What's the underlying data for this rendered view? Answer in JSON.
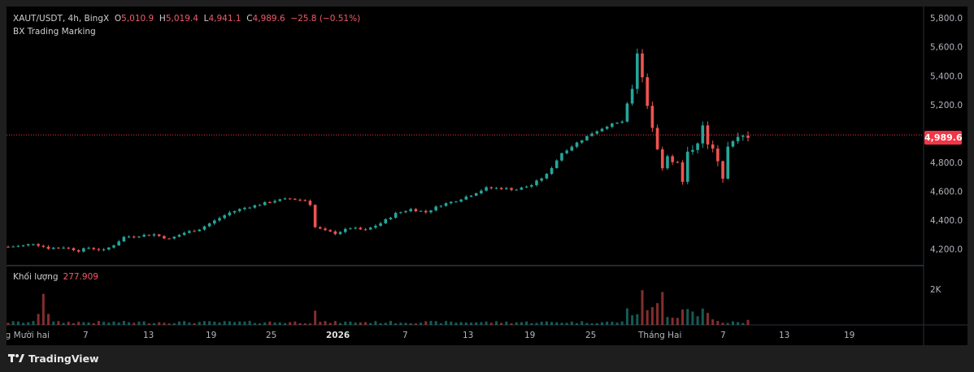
{
  "header": {
    "symbol": "XAUT/USDT, 4h, BingX",
    "o_label": "O",
    "o_value": "5,010.9",
    "h_label": "H",
    "h_value": "5,019.4",
    "l_label": "L",
    "l_value": "4,941.1",
    "c_label": "C",
    "c_value": "4,989.6",
    "change": "−25.8 (−0.51%)",
    "indicator": "BX Trading Marking"
  },
  "volume": {
    "label": "Khối lượng",
    "value": "277.909",
    "axis_tick": "2K"
  },
  "price_tag": "4,989.6",
  "footer": {
    "brand": "TradingView",
    "logo_icon": "tradingview-logo-icon"
  },
  "colors": {
    "up": "#26a69a",
    "down": "#ef5350",
    "price_tag": "#f23645",
    "background": "#000000"
  },
  "chart_data": {
    "type": "candlestick",
    "interval": "4h",
    "y_ticks": [
      "5,800.0",
      "5,600.0",
      "5,400.0",
      "5,200.0",
      "4,800.0",
      "4,600.0",
      "4,400.0",
      "4,200.0"
    ],
    "ylim": [
      4090,
      5880
    ],
    "x_ticks": [
      "ng Mười hai",
      "7",
      "13",
      "19",
      "25",
      "2026",
      "7",
      "13",
      "19",
      "25",
      "Tháng Hai",
      "7",
      "13",
      "19"
    ],
    "last_price": 4989.6,
    "close_path": [
      {
        "t": 0,
        "p": 4215
      },
      {
        "t": 3,
        "p": 4222
      },
      {
        "t": 5,
        "p": 4238
      },
      {
        "t": 8,
        "p": 4205
      },
      {
        "t": 11,
        "p": 4212
      },
      {
        "t": 14,
        "p": 4188
      },
      {
        "t": 16,
        "p": 4208
      },
      {
        "t": 19,
        "p": 4190
      },
      {
        "t": 21,
        "p": 4228
      },
      {
        "t": 23,
        "p": 4282
      },
      {
        "t": 26,
        "p": 4292
      },
      {
        "t": 29,
        "p": 4300
      },
      {
        "t": 32,
        "p": 4268
      },
      {
        "t": 35,
        "p": 4312
      },
      {
        "t": 38,
        "p": 4338
      },
      {
        "t": 41,
        "p": 4395
      },
      {
        "t": 44,
        "p": 4452
      },
      {
        "t": 47,
        "p": 4485
      },
      {
        "t": 50,
        "p": 4508
      },
      {
        "t": 53,
        "p": 4535
      },
      {
        "t": 56,
        "p": 4548
      },
      {
        "t": 59,
        "p": 4535
      },
      {
        "t": 60,
        "p": 4510
      },
      {
        "t": 61,
        "p": 4350
      },
      {
        "t": 63,
        "p": 4325
      },
      {
        "t": 65,
        "p": 4308
      },
      {
        "t": 68,
        "p": 4345
      },
      {
        "t": 71,
        "p": 4330
      },
      {
        "t": 74,
        "p": 4378
      },
      {
        "t": 77,
        "p": 4445
      },
      {
        "t": 80,
        "p": 4475
      },
      {
        "t": 83,
        "p": 4455
      },
      {
        "t": 86,
        "p": 4505
      },
      {
        "t": 89,
        "p": 4535
      },
      {
        "t": 92,
        "p": 4575
      },
      {
        "t": 95,
        "p": 4622
      },
      {
        "t": 98,
        "p": 4620
      },
      {
        "t": 101,
        "p": 4612
      },
      {
        "t": 104,
        "p": 4643
      },
      {
        "t": 107,
        "p": 4715
      },
      {
        "t": 110,
        "p": 4865
      },
      {
        "t": 113,
        "p": 4935
      },
      {
        "t": 116,
        "p": 5002
      },
      {
        "t": 119,
        "p": 5053
      },
      {
        "t": 122,
        "p": 5082
      },
      {
        "t": 124,
        "p": 5320
      },
      {
        "t": 125,
        "p": 5565
      },
      {
        "t": 126,
        "p": 5400
      },
      {
        "t": 127,
        "p": 5200
      },
      {
        "t": 128,
        "p": 5050
      },
      {
        "t": 129,
        "p": 4880
      },
      {
        "t": 130,
        "p": 4780
      },
      {
        "t": 131,
        "p": 4850
      },
      {
        "t": 133,
        "p": 4790
      },
      {
        "t": 134,
        "p": 4660
      },
      {
        "t": 135,
        "p": 4855
      },
      {
        "t": 137,
        "p": 4955
      },
      {
        "t": 138,
        "p": 5040
      },
      {
        "t": 139,
        "p": 4920
      },
      {
        "t": 141,
        "p": 4830
      },
      {
        "t": 142,
        "p": 4700
      },
      {
        "t": 143,
        "p": 4900
      },
      {
        "t": 145,
        "p": 4960
      },
      {
        "t": 147,
        "p": 4989.6
      }
    ],
    "volume_scale_2k": 2000
  }
}
